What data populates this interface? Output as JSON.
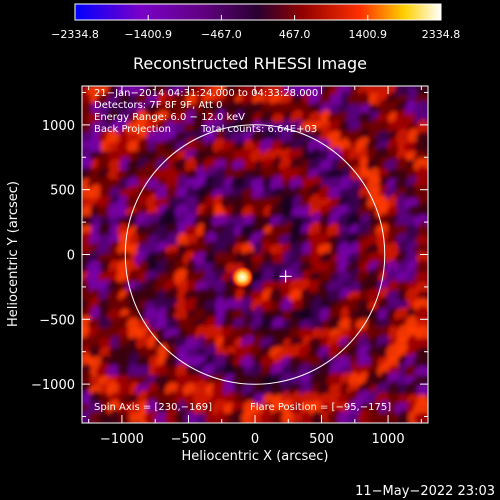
{
  "chart_data": {
    "type": "heatmap",
    "title": "Reconstructed RHESSI Image",
    "xlabel": "Heliocentric X (arcsec)",
    "ylabel": "Heliocentric Y (arcsec)",
    "xlim": [
      -1300,
      1300
    ],
    "ylim": [
      -1300,
      1300
    ],
    "x_ticks": [
      -1000,
      -500,
      0,
      500,
      1000
    ],
    "x_tick_labels": [
      "−1000",
      "−500",
      "0",
      "500",
      "1000"
    ],
    "y_ticks": [
      -1000,
      -500,
      0,
      500,
      1000
    ],
    "y_tick_labels": [
      "−1000",
      "−500",
      "0",
      "500",
      "1000"
    ],
    "colorbar": {
      "min": -2334.8,
      "max": 2334.8,
      "ticks": [
        -2334.8,
        -1400.9,
        -467.0,
        467.0,
        1400.9,
        2334.8
      ],
      "tick_labels": [
        "−2334.8",
        "−1400.9",
        "−467.0",
        "467.0",
        "1400.9",
        "2334.8"
      ],
      "colors": [
        "#0000ff",
        "#7a00c8",
        "#600080",
        "#2a0030",
        "#900000",
        "#ff3000",
        "#ffd000",
        "#ffffff"
      ]
    },
    "annotations": {
      "time": "21−Jan−2014 04:31:24.000 to 04:33:28.000",
      "detectors": "Detectors: 7F 8F 9F, Att 0",
      "energy": "Energy Range: 6.0 − 12.0 keV",
      "method": "Back Projection",
      "counts": "Total counts: 6.64E+03",
      "spin_axis": "Spin Axis = [230,−169]",
      "flare_position": "Flare Position = [−95,−175]"
    },
    "solar_limb_radius": 975,
    "sources": [
      {
        "x": -95,
        "y": -175,
        "intensity": 2334.8,
        "label": "flare"
      }
    ],
    "crosshair": {
      "x": 230,
      "y": -169
    }
  },
  "footer": {
    "date": "11−May−2022 23:03"
  }
}
